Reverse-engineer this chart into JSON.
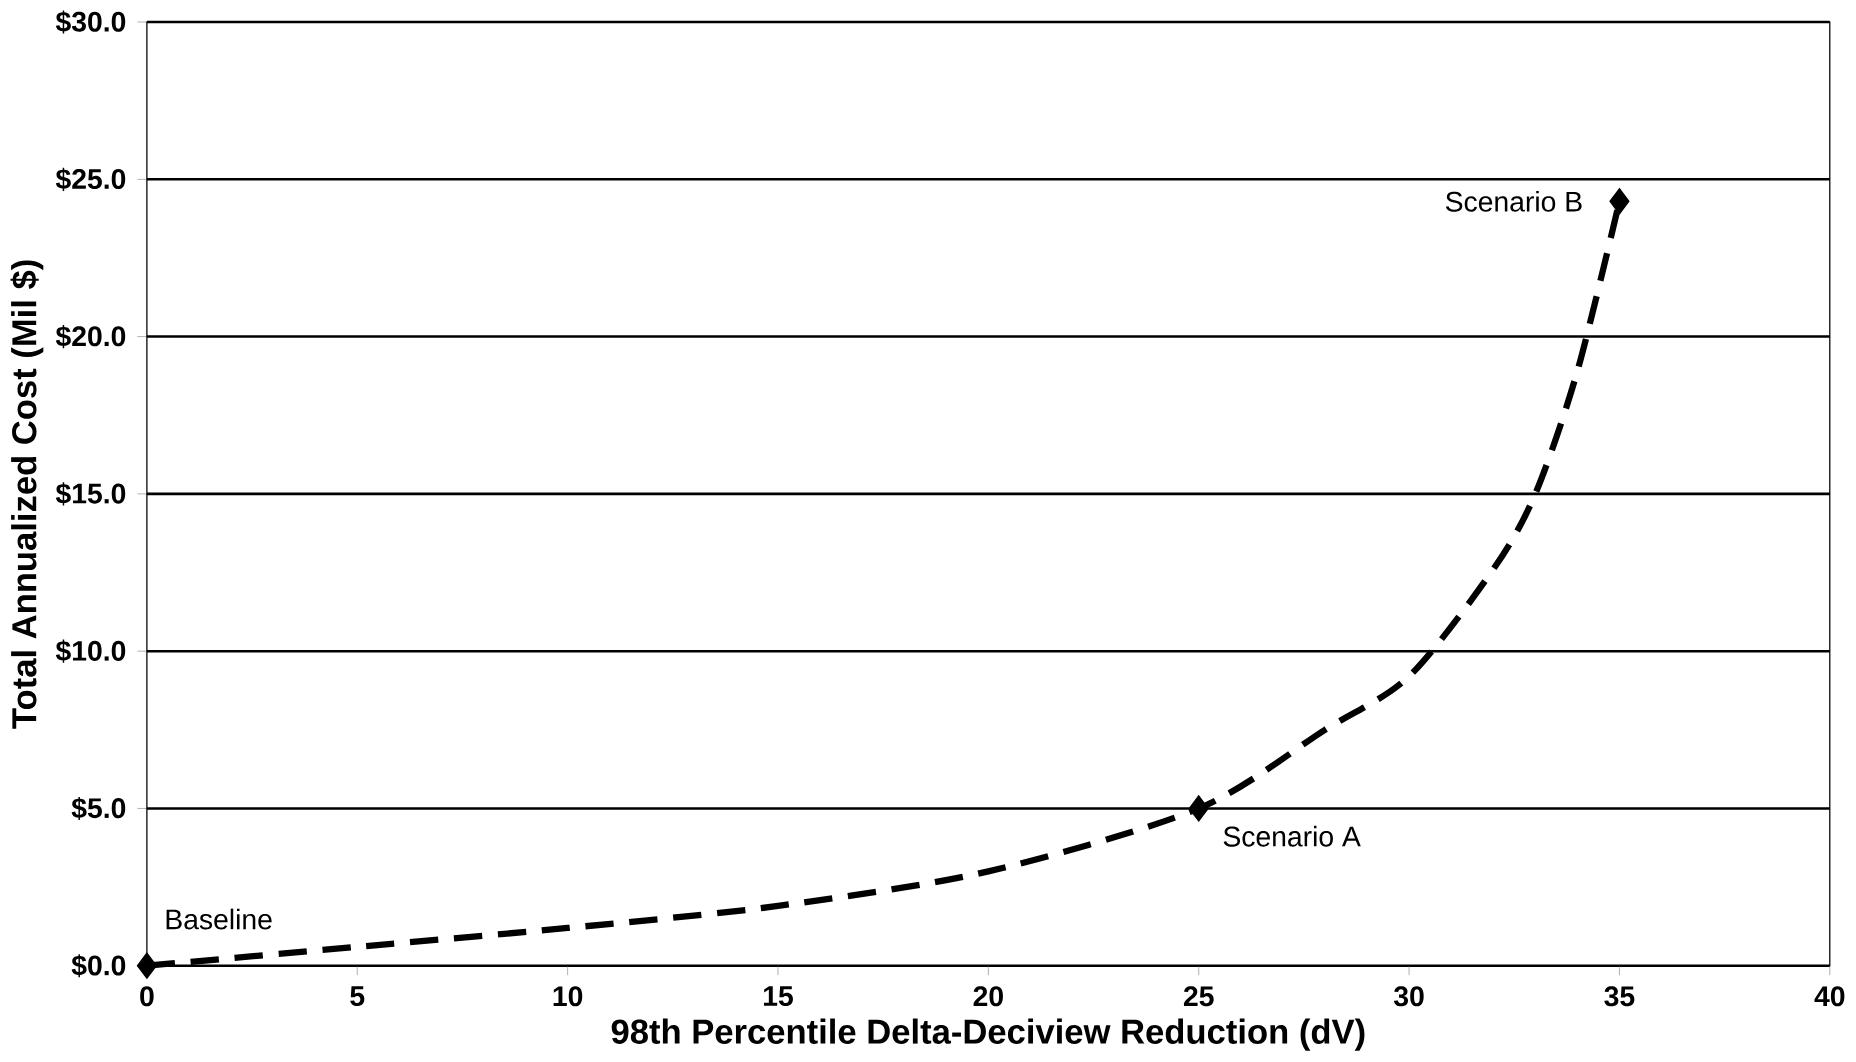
{
  "chart_data": {
    "type": "line",
    "xlabel": "98th Percentile Delta-Deciview Reduction (dV)",
    "ylabel": "Total Annualized Cost (Mil $)",
    "xlim": [
      0,
      40
    ],
    "xticks": [
      0,
      5,
      10,
      15,
      20,
      25,
      30,
      35,
      40
    ],
    "ylim": [
      0,
      30
    ],
    "yticks": [
      {
        "value": 0,
        "label": "$0.0"
      },
      {
        "value": 5,
        "label": "$5.0"
      },
      {
        "value": 10,
        "label": "$10.0"
      },
      {
        "value": 15,
        "label": "$15.0"
      },
      {
        "value": 20,
        "label": "$20.0"
      },
      {
        "value": 25,
        "label": "$25.0"
      },
      {
        "value": 30,
        "label": "$30.0"
      }
    ],
    "grid": "y",
    "series": [
      {
        "type": "line",
        "color": "#000000",
        "line_style": "dashed",
        "marker": "none",
        "x": [
          0,
          5,
          10,
          15,
          20,
          25,
          28,
          30,
          32,
          33,
          34,
          35
        ],
        "values": [
          0,
          0.6,
          1.2,
          1.9,
          3.0,
          5.0,
          7.5,
          9.2,
          12.6,
          15,
          18.9,
          24.3
        ]
      },
      {
        "type": "scatter",
        "color": "#000000",
        "marker": "diamond",
        "x": [
          0,
          25,
          35
        ],
        "values": [
          0,
          5.0,
          24.3
        ]
      }
    ],
    "annotations": [
      {
        "text": "Baseline",
        "x": 0,
        "y": 0
      },
      {
        "text": "Scenario A",
        "x": 25,
        "y": 5.0
      },
      {
        "text": "Scenario B",
        "x": 35,
        "y": 24.3
      }
    ]
  }
}
